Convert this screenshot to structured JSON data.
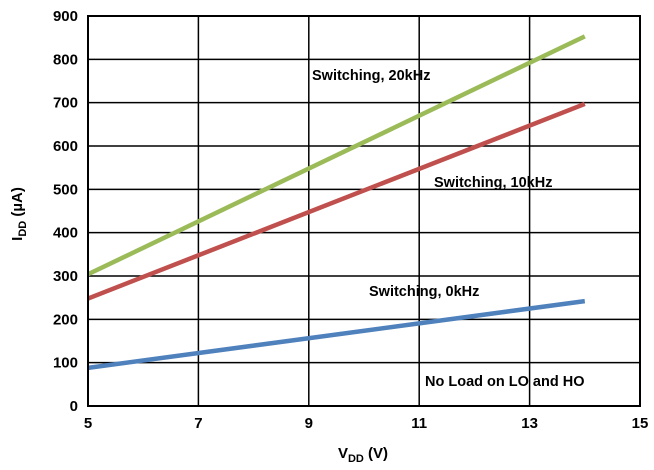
{
  "chart_data": {
    "type": "line",
    "xlabel": {
      "main": "V",
      "sub": "DD",
      "unit": " (V)"
    },
    "ylabel": {
      "main": "I",
      "sub": "DD",
      "unit": " (µA)"
    },
    "xlim": [
      5,
      15
    ],
    "ylim": [
      0,
      900
    ],
    "x_ticks": [
      5,
      7,
      9,
      11,
      13,
      15
    ],
    "y_ticks": [
      0,
      100,
      200,
      300,
      400,
      500,
      600,
      700,
      800,
      900
    ],
    "grid": true,
    "annotation": "No Load on LO and HO",
    "series": [
      {
        "name": "Switching, 0kHz",
        "color": "#4f81bd",
        "x": [
          5,
          14
        ],
        "y": [
          88,
          242
        ]
      },
      {
        "name": "Switching, 10kHz",
        "color": "#c0504d",
        "x": [
          5,
          14
        ],
        "y": [
          248,
          697
        ]
      },
      {
        "name": "Switching, 20kHz",
        "color": "#9bbb59",
        "x": [
          5,
          14
        ],
        "y": [
          304,
          853
        ]
      }
    ]
  }
}
